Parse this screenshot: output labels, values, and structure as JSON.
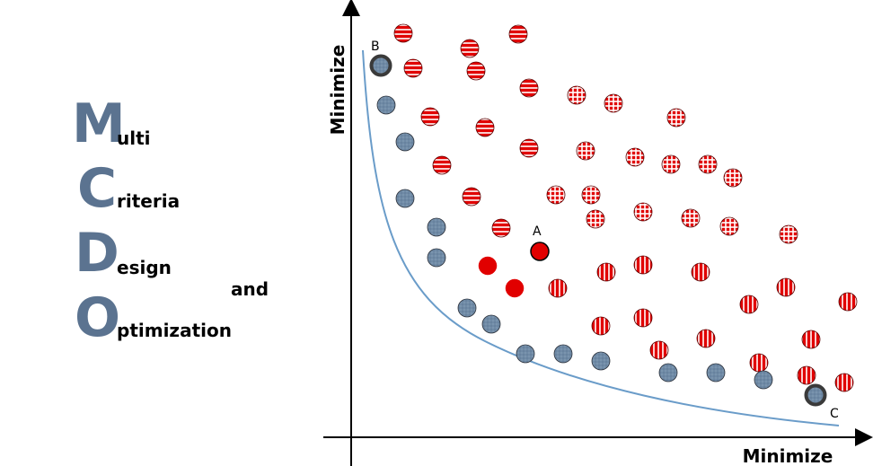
{
  "title": {
    "letters": [
      "M",
      "C",
      "D",
      "O"
    ],
    "rests": [
      "ulti",
      "riteria",
      "esign",
      "ptimization"
    ],
    "and": "and"
  },
  "axes": {
    "x_label": "Minimize",
    "y_label": "Minimize"
  },
  "points": {
    "labels": {
      "A": "A",
      "B": "B",
      "C": "C"
    }
  },
  "legend_colors": {
    "pareto_fill": "#6f8aa6",
    "pareto_outline": "#2a2f38",
    "dominated_fill": "#e10000",
    "curve": "#6a9cc9"
  },
  "pareto_points": [
    [
      430,
      117
    ],
    [
      451,
      158
    ],
    [
      451,
      221
    ],
    [
      486,
      253
    ],
    [
      486,
      287
    ],
    [
      520,
      343
    ],
    [
      547,
      361
    ],
    [
      585,
      394
    ],
    [
      627,
      394
    ],
    [
      669,
      402
    ],
    [
      744,
      415
    ],
    [
      797,
      415
    ],
    [
      850,
      423
    ]
  ],
  "endpoint_points": [
    [
      424,
      73
    ],
    [
      908,
      440
    ]
  ],
  "solid_points": [
    [
      543,
      296
    ],
    [
      573,
      321
    ]
  ],
  "point_A": [
    601,
    280
  ],
  "horizontal_striped": [
    [
      449,
      37
    ],
    [
      523,
      54
    ],
    [
      577,
      38
    ],
    [
      460,
      76
    ],
    [
      530,
      79
    ],
    [
      589,
      98
    ],
    [
      479,
      130
    ],
    [
      540,
      142
    ],
    [
      589,
      165
    ],
    [
      492,
      184
    ],
    [
      525,
      219
    ],
    [
      558,
      254
    ]
  ],
  "grid_pattern": [
    [
      642,
      106
    ],
    [
      683,
      115
    ],
    [
      753,
      131
    ],
    [
      652,
      168
    ],
    [
      707,
      175
    ],
    [
      747,
      183
    ],
    [
      788,
      183
    ],
    [
      816,
      198
    ],
    [
      619,
      217
    ],
    [
      658,
      217
    ],
    [
      663,
      244
    ],
    [
      716,
      236
    ],
    [
      769,
      243
    ],
    [
      812,
      252
    ],
    [
      878,
      261
    ]
  ],
  "vertical_striped": [
    [
      675,
      303
    ],
    [
      716,
      295
    ],
    [
      780,
      303
    ],
    [
      621,
      321
    ],
    [
      875,
      320
    ],
    [
      834,
      339
    ],
    [
      944,
      336
    ],
    [
      669,
      363
    ],
    [
      716,
      354
    ],
    [
      786,
      377
    ],
    [
      903,
      378
    ],
    [
      734,
      390
    ],
    [
      845,
      404
    ],
    [
      898,
      418
    ],
    [
      940,
      426
    ]
  ]
}
